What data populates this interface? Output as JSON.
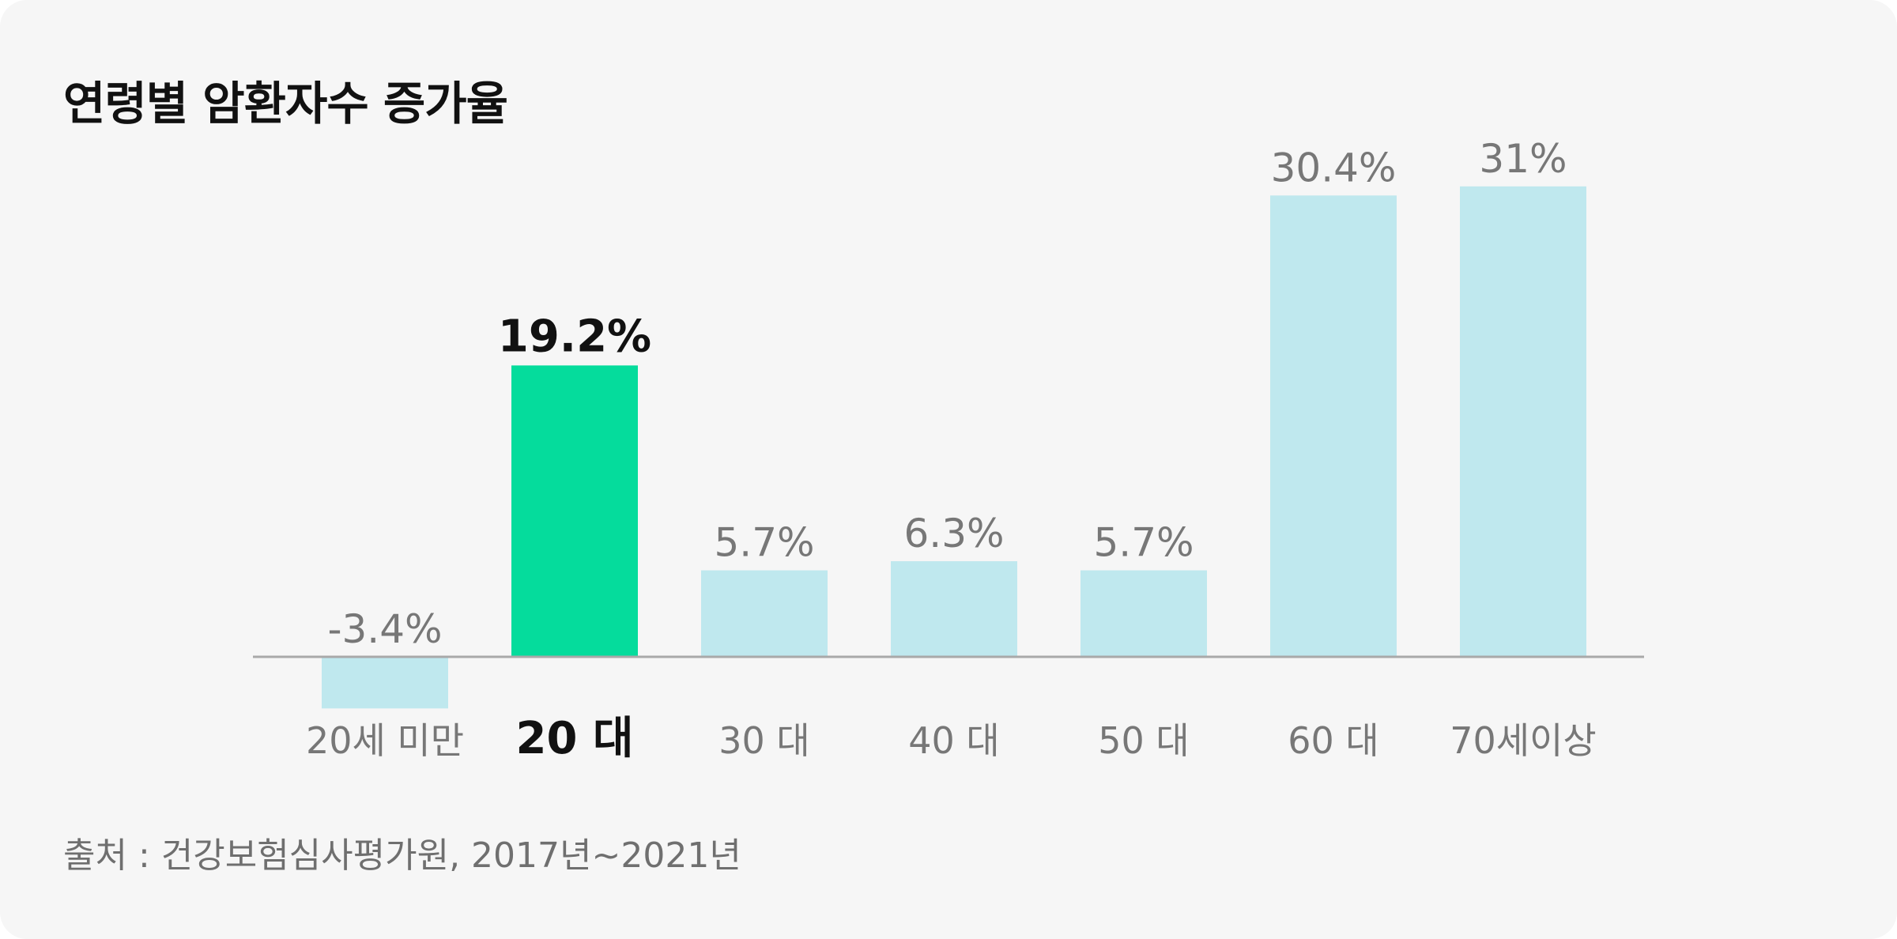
{
  "colors": {
    "background": "#f6f6f6",
    "bar": "#bfe8ee",
    "highlight_bar": "#05dc9c",
    "label": "#777777",
    "highlight_label": "#111111",
    "baseline": "#a9a9a9"
  },
  "chart_data": {
    "type": "bar",
    "title": "연령별 암환자수 증가율",
    "categories": [
      "20세 미만",
      "20 대",
      "30 대",
      "40 대",
      "50 대",
      "60 대",
      "70세이상"
    ],
    "values": [
      -3.4,
      19.2,
      5.7,
      6.3,
      5.7,
      30.4,
      31
    ],
    "value_labels": [
      "-3.4%",
      "19.2%",
      "5.7%",
      "6.3%",
      "5.7%",
      "30.4%",
      "31%"
    ],
    "highlight_index": 1,
    "unit": "%",
    "xlabel": "",
    "ylabel": "",
    "ylim": [
      -3.4,
      31
    ],
    "grid": false,
    "legend": "none"
  },
  "source": "출처 : 건강보험심사평가원, 2017년~2021년"
}
